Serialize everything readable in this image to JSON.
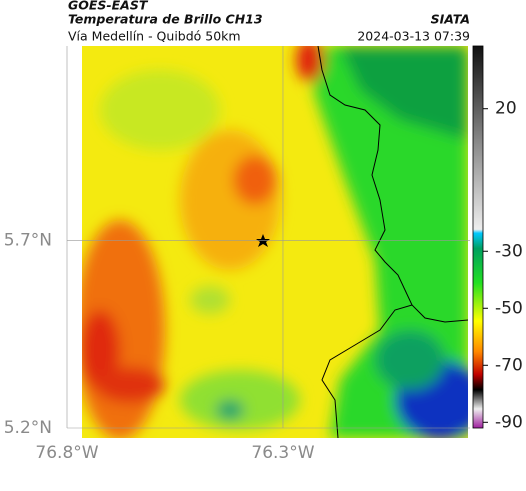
{
  "header": {
    "source": "GOES-EAST",
    "title": "Temperatura de Brillo CH13",
    "brand": "SIATA",
    "subtitle": "Vía Medellín - Quibdó 50km",
    "timestamp": "2024-03-13 07:39"
  },
  "map": {
    "xlim": [
      -76.8,
      -75.867
    ],
    "ylim": [
      5.2,
      6.219
    ],
    "xticks": [
      {
        "value": -76.8,
        "label": "76.8°W"
      },
      {
        "value": -76.3,
        "label": "76.3°W"
      }
    ],
    "yticks": [
      {
        "value": 5.2,
        "label": "5.2°N"
      },
      {
        "value": 5.7,
        "label": "5.7°N"
      }
    ],
    "grid": true
  },
  "colorbar": {
    "lim": [
      -92,
      42
    ],
    "ticks": [
      20,
      -30,
      -50,
      -70,
      -90
    ]
  }
}
